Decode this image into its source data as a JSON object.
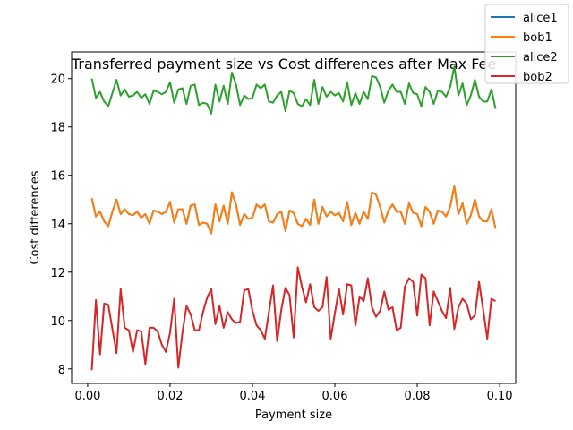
{
  "chart_data": {
    "type": "line",
    "title": "Transferred payment size vs Cost differences after Max Fee",
    "xlabel": "Payment size",
    "ylabel": "Cost differences",
    "xlim": [
      -0.0039,
      0.1039
    ],
    "ylim": [
      7.4,
      21.1
    ],
    "xticks": [
      0.0,
      0.02,
      0.04,
      0.06,
      0.08,
      0.1
    ],
    "xtick_labels": [
      "0.00",
      "0.02",
      "0.04",
      "0.06",
      "0.08",
      "0.10"
    ],
    "yticks": [
      8,
      10,
      12,
      14,
      16,
      18,
      20
    ],
    "ytick_labels": [
      "8",
      "10",
      "12",
      "14",
      "16",
      "18",
      "20"
    ],
    "grid": false,
    "legend_position": "top-right",
    "x": [
      0.001,
      0.002,
      0.003,
      0.004,
      0.005,
      0.006,
      0.007,
      0.008,
      0.009,
      0.01,
      0.011,
      0.012,
      0.013,
      0.014,
      0.015,
      0.016,
      0.017,
      0.018,
      0.019,
      0.02,
      0.021,
      0.022,
      0.023,
      0.024,
      0.025,
      0.026,
      0.027,
      0.028,
      0.029,
      0.03,
      0.031,
      0.032,
      0.033,
      0.034,
      0.035,
      0.036,
      0.037,
      0.038,
      0.039,
      0.04,
      0.041,
      0.042,
      0.043,
      0.044,
      0.045,
      0.046,
      0.047,
      0.048,
      0.049,
      0.05,
      0.051,
      0.052,
      0.053,
      0.054,
      0.055,
      0.056,
      0.057,
      0.058,
      0.059,
      0.06,
      0.061,
      0.062,
      0.063,
      0.064,
      0.065,
      0.066,
      0.067,
      0.068,
      0.069,
      0.07,
      0.071,
      0.072,
      0.073,
      0.074,
      0.075,
      0.076,
      0.077,
      0.078,
      0.079,
      0.08,
      0.081,
      0.082,
      0.083,
      0.084,
      0.085,
      0.086,
      0.087,
      0.088,
      0.089,
      0.09,
      0.091,
      0.092,
      0.093,
      0.094,
      0.095,
      0.096,
      0.097,
      0.098,
      0.099
    ],
    "series": [
      {
        "name": "alice1",
        "color": "#1f77b4",
        "values": [
          15.05,
          14.3,
          14.5,
          14.1,
          13.9,
          14.5,
          15.0,
          14.4,
          14.6,
          14.4,
          14.35,
          14.5,
          14.25,
          14.4,
          14.0,
          14.55,
          14.5,
          14.4,
          14.5,
          14.9,
          14.05,
          14.6,
          14.6,
          14.0,
          14.75,
          14.8,
          13.95,
          14.05,
          14.0,
          13.6,
          14.8,
          14.1,
          14.75,
          14.0,
          15.3,
          14.8,
          13.95,
          14.4,
          14.2,
          14.25,
          14.8,
          14.65,
          14.8,
          14.1,
          14.05,
          14.4,
          14.5,
          13.7,
          14.55,
          14.45,
          14.0,
          13.9,
          14.2,
          13.95,
          15.0,
          14.0,
          14.7,
          14.3,
          14.5,
          14.35,
          14.45,
          14.1,
          14.9,
          13.95,
          14.45,
          14.0,
          14.5,
          14.2,
          15.3,
          15.2,
          14.7,
          14.05,
          14.55,
          14.8,
          14.5,
          14.5,
          14.0,
          14.85,
          14.45,
          14.4,
          13.9,
          14.7,
          14.5,
          14.0,
          14.55,
          14.5,
          14.3,
          14.7,
          15.55,
          14.4,
          14.85,
          14.0,
          14.35,
          15.0,
          14.3,
          14.1,
          14.1,
          14.6,
          13.8
        ]
      },
      {
        "name": "bob1",
        "color": "#ff7f0e",
        "values": [
          15.05,
          14.3,
          14.5,
          14.1,
          13.9,
          14.5,
          15.0,
          14.4,
          14.6,
          14.4,
          14.35,
          14.5,
          14.25,
          14.4,
          14.0,
          14.55,
          14.5,
          14.4,
          14.5,
          14.9,
          14.05,
          14.6,
          14.6,
          14.0,
          14.75,
          14.8,
          13.95,
          14.05,
          14.0,
          13.6,
          14.8,
          14.1,
          14.75,
          14.0,
          15.3,
          14.8,
          13.95,
          14.4,
          14.2,
          14.25,
          14.8,
          14.65,
          14.8,
          14.1,
          14.05,
          14.4,
          14.5,
          13.7,
          14.55,
          14.45,
          14.0,
          13.9,
          14.2,
          13.95,
          15.0,
          14.0,
          14.7,
          14.3,
          14.5,
          14.35,
          14.45,
          14.1,
          14.9,
          13.95,
          14.45,
          14.0,
          14.5,
          14.2,
          15.3,
          15.2,
          14.7,
          14.05,
          14.55,
          14.8,
          14.5,
          14.5,
          14.0,
          14.85,
          14.45,
          14.4,
          13.9,
          14.7,
          14.5,
          14.0,
          14.55,
          14.5,
          14.3,
          14.7,
          15.55,
          14.4,
          14.85,
          14.0,
          14.35,
          15.0,
          14.3,
          14.1,
          14.1,
          14.6,
          13.8
        ]
      },
      {
        "name": "alice2",
        "color": "#2ca02c",
        "values": [
          20.0,
          19.2,
          19.45,
          19.05,
          18.85,
          19.4,
          19.95,
          19.3,
          19.55,
          19.25,
          19.3,
          19.45,
          19.2,
          19.35,
          18.95,
          19.5,
          19.45,
          19.35,
          19.45,
          19.85,
          19.0,
          19.55,
          19.6,
          18.95,
          19.7,
          19.75,
          18.9,
          19.0,
          18.95,
          18.55,
          19.75,
          19.05,
          19.7,
          18.95,
          20.25,
          19.75,
          18.9,
          19.3,
          19.15,
          19.2,
          19.75,
          19.6,
          19.75,
          19.05,
          19.0,
          19.3,
          19.45,
          18.65,
          19.5,
          19.4,
          18.95,
          18.85,
          19.15,
          18.9,
          19.95,
          18.95,
          19.65,
          19.25,
          19.45,
          19.3,
          19.4,
          19.05,
          19.85,
          18.9,
          19.4,
          18.95,
          19.45,
          19.15,
          20.1,
          20.05,
          19.65,
          19.0,
          19.5,
          19.75,
          19.45,
          19.45,
          18.95,
          19.8,
          19.4,
          19.35,
          18.85,
          19.65,
          19.45,
          18.95,
          19.5,
          19.45,
          19.25,
          19.65,
          20.5,
          19.3,
          19.8,
          18.9,
          19.3,
          19.95,
          19.25,
          19.05,
          19.05,
          19.55,
          18.75
        ]
      },
      {
        "name": "bob2",
        "color": "#d62728",
        "values": [
          7.95,
          10.85,
          8.6,
          10.7,
          10.65,
          9.65,
          8.65,
          11.3,
          9.7,
          9.6,
          8.7,
          9.6,
          9.55,
          8.2,
          9.7,
          9.7,
          9.55,
          9.0,
          8.7,
          9.5,
          10.9,
          8.05,
          9.5,
          10.6,
          10.25,
          9.6,
          9.6,
          10.35,
          10.95,
          11.3,
          9.85,
          10.6,
          9.7,
          10.35,
          10.05,
          9.9,
          9.95,
          11.25,
          11.3,
          10.4,
          9.8,
          9.6,
          9.25,
          10.35,
          11.45,
          9.15,
          10.45,
          11.35,
          11.05,
          9.3,
          12.2,
          11.4,
          10.75,
          11.5,
          10.55,
          10.4,
          10.55,
          11.8,
          9.25,
          10.3,
          11.3,
          10.25,
          11.5,
          11.45,
          9.8,
          11.0,
          10.8,
          11.75,
          10.55,
          10.15,
          10.4,
          11.2,
          10.45,
          10.55,
          9.6,
          9.7,
          11.4,
          11.75,
          11.6,
          10.2,
          11.9,
          11.75,
          9.8,
          11.2,
          10.8,
          10.4,
          10.1,
          11.35,
          9.65,
          10.55,
          10.9,
          10.7,
          10.05,
          10.2,
          11.6,
          10.45,
          9.25,
          10.9,
          10.8
        ]
      }
    ]
  }
}
